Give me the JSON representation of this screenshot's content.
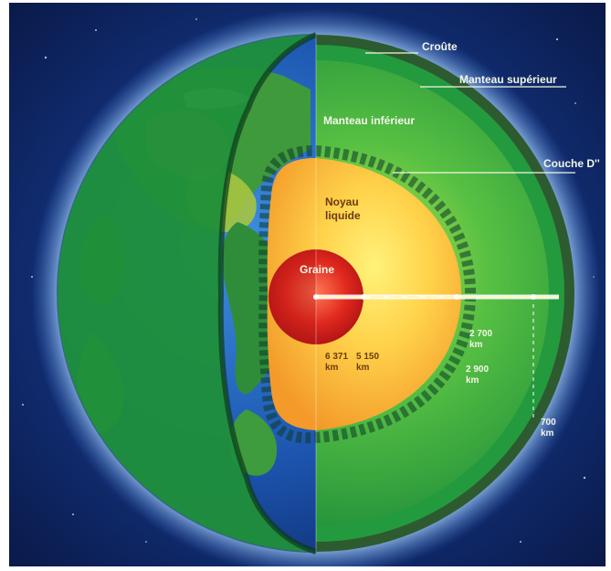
{
  "labels": {
    "crust": "Croûte",
    "upper_mantle": "Manteau supérieur",
    "lower_mantle": "Manteau inférieur",
    "d_layer": "Couche D''",
    "outer_core": "Noyau\nliquide",
    "inner_core": "Graine"
  },
  "depths": {
    "inner_core_boundary": "5 150\nkm",
    "center": "6 371\nkm",
    "d_layer_top": "2 700\nkm",
    "core_mantle_boundary": "2 900\nkm",
    "upper_mantle_boundary": "700\nkm"
  },
  "colors": {
    "space": "#0a1f5c",
    "halo": "#9fd0ff",
    "ocean": "#1f5fb8",
    "land": "#3a8f3a",
    "crust": "#3d6b3a",
    "mantle_green": "#23a541",
    "mantle_light": "#8bd14a",
    "outer_core": "#f7b531",
    "outer_core_light": "#ffe46b",
    "inner_core": "#d6211c",
    "inner_core_light": "#ff6b4a"
  }
}
